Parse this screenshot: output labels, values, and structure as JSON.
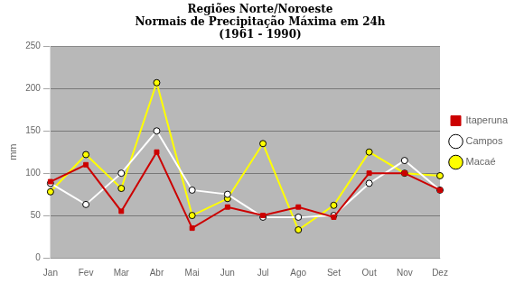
{
  "chart_data": {
    "type": "line",
    "title": "Regiões Norte/Noroeste\nNormais de Precipitação Máxima em 24h\n(1961 - 1990)",
    "y_label": "mm",
    "categories": [
      "Jan",
      "Fev",
      "Mar",
      "Abr",
      "Mai",
      "Jun",
      "Jul",
      "Ago",
      "Set",
      "Out",
      "Nov",
      "Dez"
    ],
    "series": [
      {
        "name": "Itaperuna",
        "color": "#cc0000",
        "marker": "square",
        "values": [
          90,
          110,
          55,
          125,
          35,
          60,
          50,
          60,
          48,
          100,
          100,
          80
        ]
      },
      {
        "name": "Campos",
        "color": "#ffffff",
        "marker": "circle",
        "values": [
          88,
          63,
          100,
          150,
          80,
          75,
          48,
          48,
          50,
          88,
          115,
          80
        ]
      },
      {
        "name": "Macaé",
        "color": "#ffff00",
        "marker": "circle",
        "values": [
          78,
          122,
          82,
          207,
          50,
          70,
          135,
          33,
          62,
          125,
          100,
          97
        ]
      }
    ],
    "ylim": [
      0,
      250
    ],
    "yticks": [
      0,
      50,
      100,
      150,
      200,
      250
    ],
    "grid": "y",
    "legend": "right"
  }
}
